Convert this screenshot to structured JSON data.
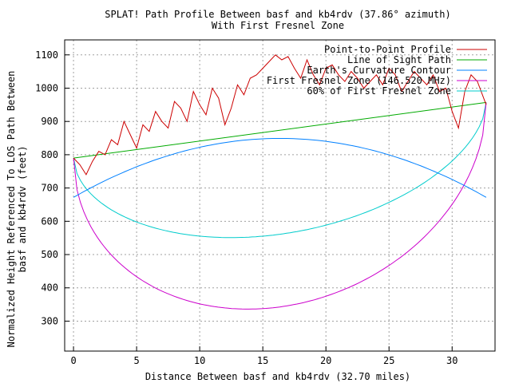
{
  "chart_data": {
    "type": "line",
    "title": "SPLAT! Path Profile Between basf and kb4rdv (37.86° azimuth)",
    "subtitle": "With First Fresnel Zone",
    "xlabel": "Distance Between basf and kb4rdv (32.70 miles)",
    "ylabel_line1": "Normalized Height Referenced To LOS Path Between",
    "ylabel_line2": "basf and kb4rdv (feet)",
    "xlim": [
      -0.7,
      33.4
    ],
    "ylim": [
      210,
      1145
    ],
    "xticks": [
      0,
      5,
      10,
      15,
      20,
      25,
      30
    ],
    "yticks": [
      300,
      400,
      500,
      600,
      700,
      800,
      900,
      1000,
      1100
    ],
    "grid": true,
    "legend_position": "top-right",
    "distance_miles": 32.7,
    "series": [
      {
        "name": "Point-to-Point Profile",
        "color": "#cc0000",
        "x": [
          0,
          0.5,
          1,
          1.5,
          2,
          2.5,
          3,
          3.5,
          4,
          4.5,
          5,
          5.5,
          6,
          6.5,
          7,
          7.5,
          8,
          8.5,
          9,
          9.5,
          10,
          10.5,
          11,
          11.5,
          12,
          12.5,
          13,
          13.5,
          14,
          14.5,
          15,
          15.5,
          16,
          16.5,
          17,
          17.5,
          18,
          18.5,
          19,
          19.5,
          20,
          20.5,
          21,
          21.5,
          22,
          22.5,
          23,
          23.5,
          24,
          24.5,
          25,
          25.5,
          26,
          26.5,
          27,
          27.5,
          28,
          28.5,
          29,
          29.5,
          30,
          30.5,
          31,
          31.5,
          32,
          32.4,
          32.7
        ],
        "y": [
          790,
          770,
          740,
          780,
          810,
          800,
          845,
          830,
          900,
          860,
          820,
          890,
          870,
          930,
          900,
          880,
          960,
          940,
          900,
          990,
          950,
          920,
          1000,
          970,
          890,
          940,
          1010,
          980,
          1030,
          1040,
          1060,
          1080,
          1100,
          1085,
          1095,
          1060,
          1030,
          1085,
          1040,
          1010,
          1060,
          1070,
          1040,
          1020,
          1050,
          1030,
          1000,
          1020,
          1040,
          1010,
          1060,
          1040,
          990,
          1020,
          1050,
          1030,
          1010,
          1040,
          990,
          1000,
          930,
          880,
          990,
          1040,
          1020,
          980,
          950
        ]
      },
      {
        "name": "Line of Sight Path",
        "color": "#00aa00"
      },
      {
        "name": "Earth's Curvature Contour",
        "color": "#0080ff"
      },
      {
        "name": "First Fresnel Zone (146.520 MHz)",
        "color": "#cc00cc"
      },
      {
        "name": "60% of First Fresnel Zone",
        "color": "#00cccc"
      }
    ],
    "los_start_ft": 790,
    "los_end_ft": 957,
    "curvature_ends_ft": 672,
    "curvature_peak_ft": 849,
    "fresnel_lowest_ft": 331,
    "fresnel60_lowest_ft": 541
  }
}
